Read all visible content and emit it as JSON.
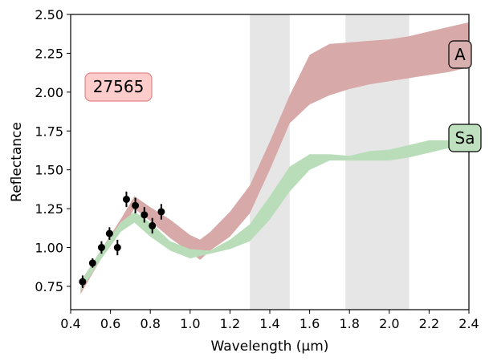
{
  "chart_data": {
    "type": "area",
    "title": "",
    "xlabel": "Wavelength (μm)",
    "ylabel": "Reflectance",
    "xlim": [
      0.4,
      2.4
    ],
    "ylim": [
      0.6,
      2.5
    ],
    "xticks": [
      "0.4",
      "0.6",
      "0.8",
      "1.0",
      "1.2",
      "1.4",
      "1.6",
      "1.8",
      "2.0",
      "2.2",
      "2.4"
    ],
    "yticks": [
      "0.75",
      "1.00",
      "1.25",
      "1.50",
      "1.75",
      "2.00",
      "2.25",
      "2.50"
    ],
    "grid": false,
    "object_label": "27565",
    "shaded_regions": [
      [
        1.3,
        1.5
      ],
      [
        1.78,
        2.1
      ]
    ],
    "bands": [
      {
        "name": "A",
        "color": "#d8a9a9",
        "x": [
          0.45,
          0.55,
          0.65,
          0.72,
          0.8,
          0.9,
          1.0,
          1.05,
          1.1,
          1.2,
          1.3,
          1.4,
          1.5,
          1.6,
          1.7,
          1.8,
          1.9,
          2.0,
          2.1,
          2.2,
          2.3,
          2.4
        ],
        "upper": [
          0.78,
          0.98,
          1.18,
          1.33,
          1.26,
          1.18,
          1.08,
          1.05,
          1.1,
          1.23,
          1.4,
          1.68,
          1.98,
          2.24,
          2.31,
          2.32,
          2.33,
          2.34,
          2.36,
          2.39,
          2.42,
          2.45
        ],
        "lower": [
          0.7,
          0.92,
          1.1,
          1.25,
          1.17,
          1.06,
          0.97,
          0.92,
          0.98,
          1.07,
          1.22,
          1.5,
          1.8,
          1.92,
          1.98,
          2.02,
          2.05,
          2.07,
          2.09,
          2.11,
          2.13,
          2.16
        ]
      },
      {
        "name": "Sa",
        "color": "#b9ddb9",
        "x": [
          0.45,
          0.55,
          0.65,
          0.72,
          0.8,
          0.9,
          1.0,
          1.1,
          1.2,
          1.3,
          1.4,
          1.5,
          1.6,
          1.7,
          1.8,
          1.9,
          2.0,
          2.1,
          2.2,
          2.3,
          2.4
        ],
        "upper": [
          0.78,
          0.98,
          1.16,
          1.23,
          1.16,
          1.04,
          0.99,
          0.98,
          1.05,
          1.15,
          1.33,
          1.52,
          1.6,
          1.6,
          1.59,
          1.62,
          1.63,
          1.66,
          1.69,
          1.69,
          1.69
        ],
        "lower": [
          0.72,
          0.92,
          1.1,
          1.16,
          1.07,
          0.98,
          0.93,
          0.96,
          0.99,
          1.04,
          1.18,
          1.36,
          1.5,
          1.56,
          1.56,
          1.56,
          1.56,
          1.58,
          1.61,
          1.64,
          1.66
        ]
      }
    ],
    "points": {
      "x": [
        0.46,
        0.51,
        0.555,
        0.595,
        0.635,
        0.68,
        0.725,
        0.77,
        0.81,
        0.855
      ],
      "y": [
        0.78,
        0.9,
        1.0,
        1.09,
        1.0,
        1.31,
        1.27,
        1.21,
        1.14,
        1.23
      ],
      "err": [
        0.04,
        0.03,
        0.04,
        0.04,
        0.05,
        0.05,
        0.05,
        0.05,
        0.05,
        0.05
      ]
    }
  }
}
